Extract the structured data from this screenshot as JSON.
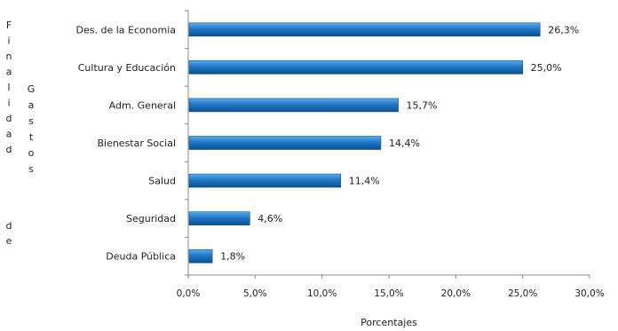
{
  "chart_data": {
    "type": "bar",
    "orientation": "horizontal",
    "categories": [
      "Des. de la Economia",
      "Cultura y Educación",
      "Adm. General",
      "Bienestar Social",
      "Salud",
      "Seguridad",
      "Deuda Pública"
    ],
    "values": [
      26.3,
      25.0,
      15.7,
      14.4,
      11.4,
      4.6,
      1.8
    ],
    "value_labels": [
      "26,3%",
      "25,0%",
      "15,7%",
      "14,4%",
      "11,4%",
      "4,6%",
      "1,8%"
    ],
    "xlabel": "Porcentajes",
    "ylabel": "Finalidad de Gastos",
    "ylabel_words": [
      "Finalidad",
      "de",
      "Gastos"
    ],
    "xlim": [
      0,
      30
    ],
    "x_ticks": [
      0,
      5,
      10,
      15,
      20,
      25,
      30
    ],
    "x_tick_labels": [
      "0,0%",
      "5,0%",
      "10,0%",
      "15,0%",
      "20,0%",
      "25,0%",
      "30,0%"
    ],
    "grid": false,
    "legend": "none",
    "colors": {
      "bar": "#1f78c8",
      "bar_light": "#5aaef0",
      "bar_dark": "#0f4f8f",
      "axis": "#8a8a8a"
    }
  }
}
